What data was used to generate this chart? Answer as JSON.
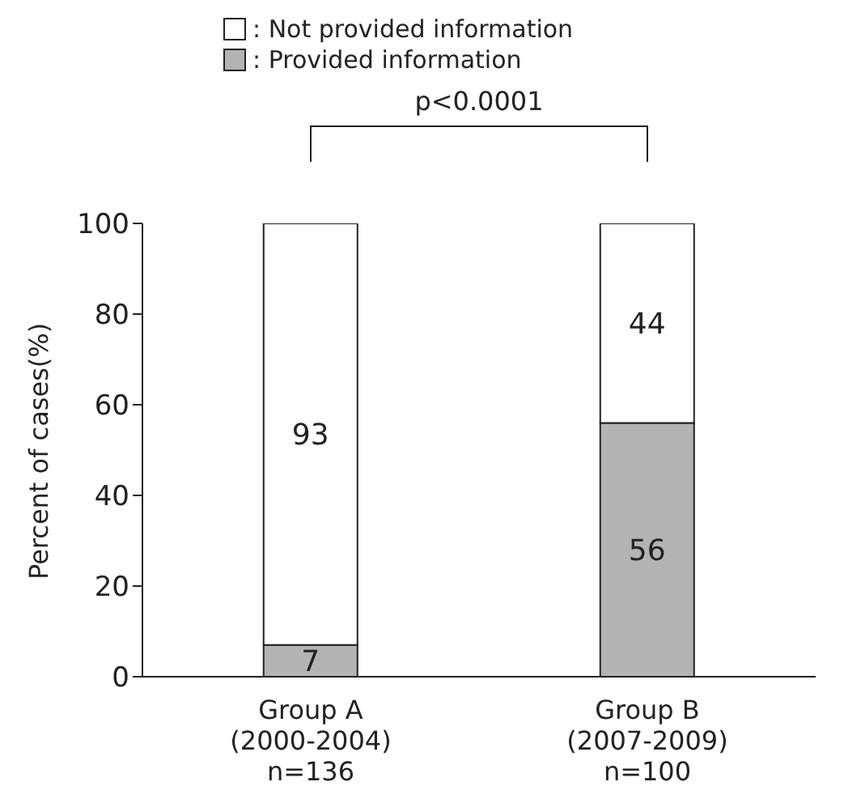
{
  "chart_data": {
    "type": "bar",
    "stacked": true,
    "categories": [
      "Group A\n(2000-2004)\nn=136",
      "Group B\n(2007-2009)\nn=100"
    ],
    "series": [
      {
        "name": ": Provided information",
        "color": "#b3b3b3",
        "values": [
          7,
          56
        ]
      },
      {
        "name": ": Not provided information",
        "color": "#ffffff",
        "values": [
          93,
          44
        ]
      }
    ],
    "ylabel": "Percent of cases(%)",
    "ylim": [
      0,
      100
    ],
    "yticks": [
      0,
      20,
      40,
      60,
      80,
      100
    ],
    "data_labels": true,
    "legend": "top",
    "grid": false,
    "annotations": [
      "p<0.0001"
    ]
  }
}
